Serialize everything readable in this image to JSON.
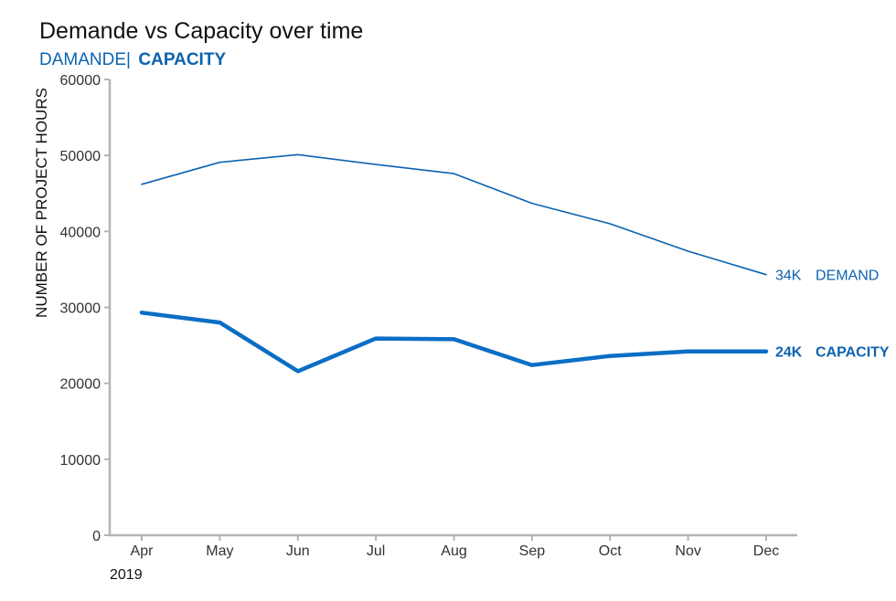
{
  "chart_data": {
    "type": "line",
    "title": "Demande vs Capacity over time",
    "subtitle": {
      "demand_text": "DAMANDE|",
      "capacity_text": "CAPACITY"
    },
    "ylabel": "NUMBER OF PROJECT HOURS",
    "xlabel": "",
    "year_label": "2019",
    "categories": [
      "Apr",
      "May",
      "Jun",
      "Jul",
      "Aug",
      "Sep",
      "Oct",
      "Nov",
      "Dec"
    ],
    "ylim": [
      0,
      60000
    ],
    "yticks": [
      0,
      10000,
      20000,
      30000,
      40000,
      50000,
      60000
    ],
    "grid": false,
    "legend": "none",
    "series": [
      {
        "key": "demand",
        "values": [
          46200,
          49100,
          50100,
          48800,
          47600,
          43700,
          41000,
          37400,
          34300
        ],
        "color": "#0b63b0",
        "weight": "thin",
        "end_value_label": "34K",
        "end_name_label": "DEMAND"
      },
      {
        "key": "capacity",
        "values": [
          29300,
          28000,
          21600,
          25900,
          25800,
          22400,
          23600,
          24200,
          24200
        ],
        "color": "#0b6ec5",
        "weight": "thick",
        "end_value_label": "24K",
        "end_name_label": "CAPACITY"
      }
    ],
    "axis_color": "#b3b3b3"
  }
}
